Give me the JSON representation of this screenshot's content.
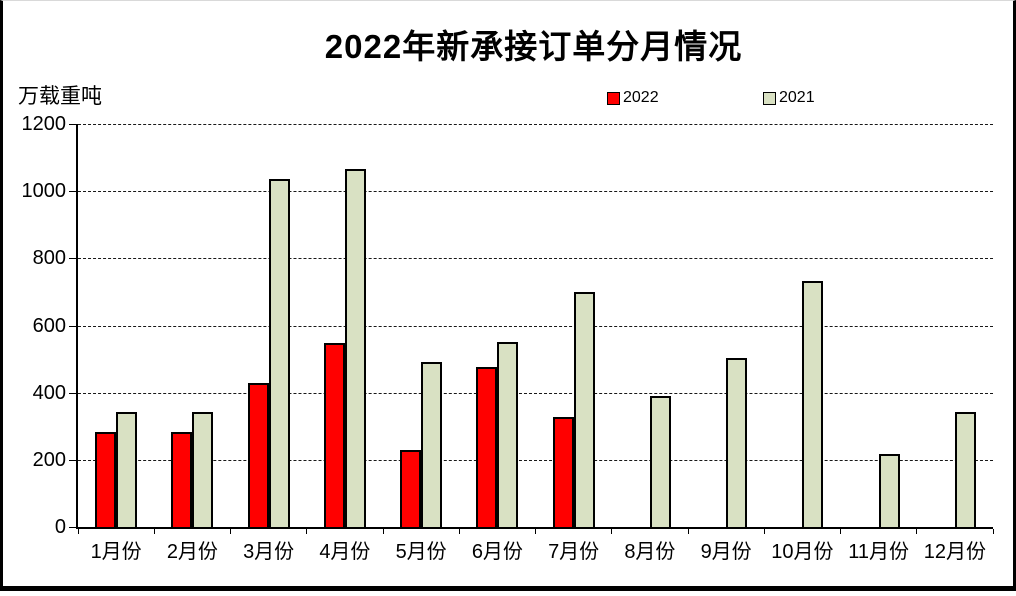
{
  "title": "2022年新承接订单分月情况",
  "y_axis_label": "万载重吨",
  "legend": [
    {
      "label": "2022",
      "color": "#ff0000"
    },
    {
      "label": "2021",
      "color": "#d9e1c3"
    }
  ],
  "chart_data": {
    "type": "bar",
    "title": "2022年新承接订单分月情况",
    "xlabel": "",
    "ylabel": "万载重吨",
    "categories": [
      "1月份",
      "2月份",
      "3月份",
      "4月份",
      "5月份",
      "6月份",
      "7月份",
      "8月份",
      "9月份",
      "10月份",
      "11月份",
      "12月份"
    ],
    "series": [
      {
        "name": "2022",
        "color": "#ff0000",
        "values": [
          283,
          283,
          429,
          547,
          228,
          475,
          328,
          0,
          0,
          0,
          0,
          0
        ]
      },
      {
        "name": "2021",
        "color": "#d9e1c3",
        "values": [
          341,
          343,
          1036,
          1065,
          490,
          550,
          699,
          389,
          503,
          732,
          216,
          341
        ]
      }
    ],
    "ylim": [
      0,
      1200
    ],
    "yticks": [
      0,
      200,
      400,
      600,
      800,
      1000,
      1200
    ],
    "grid": true,
    "gridline_style": "dashed",
    "legend_position": "top",
    "bar_outline_color": "#000000",
    "plot_background": "#ffffff"
  }
}
